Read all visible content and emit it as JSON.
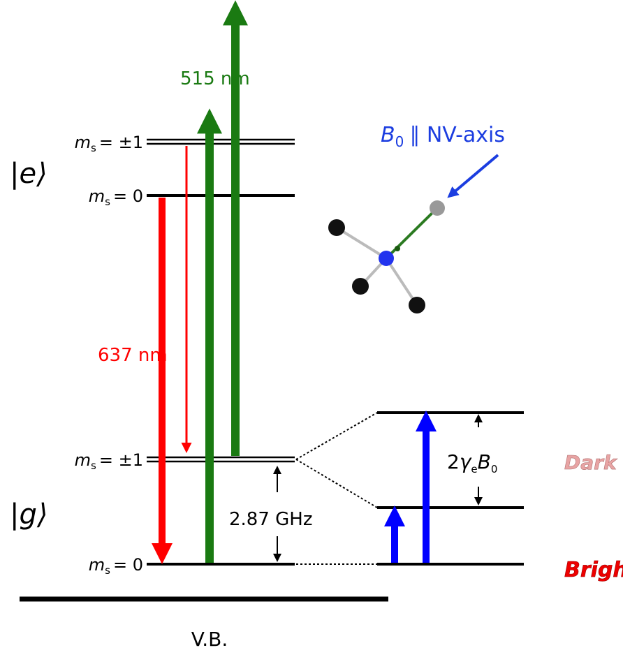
{
  "lasers": {
    "green": "515 nm",
    "red": "637 nm"
  },
  "states": {
    "excited": "|e⟩",
    "ground": "|g⟩"
  },
  "levels": [
    {
      "m": "m",
      "sub": "s",
      "value": "= ±1"
    },
    {
      "m": "m",
      "sub": "s",
      "value": "= 0"
    },
    {
      "m": "m",
      "sub": "s",
      "value": "= ±1"
    },
    {
      "m": "m",
      "sub": "s",
      "value": "= 0"
    }
  ],
  "field": {
    "symbol": "B",
    "sub": "0",
    "text": "∥ NV-axis"
  },
  "splitting": "2.87 GHz",
  "zeeman": {
    "prefix": "2",
    "gamma": "γ",
    "gamma_sub": "e",
    "b": "B",
    "b_sub": "0"
  },
  "spin_states": {
    "dark": "Dark",
    "bright": "Bright"
  },
  "band": "V.B."
}
